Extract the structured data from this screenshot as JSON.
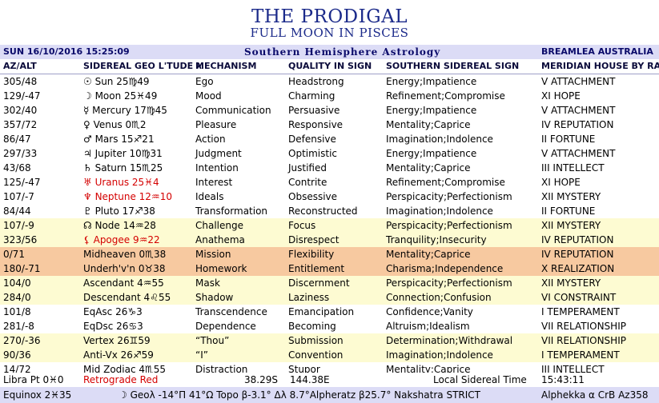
{
  "title": "THE PRODIGAL",
  "subtitle": "FULL MOON IN PISCES",
  "header": {
    "datetime": "SUN 16/10/2016  15:25:09",
    "system": "Southern Hemisphere Astrology",
    "location": "BREAMLEA AUSTRALIA"
  },
  "columns": [
    "AZ/ALT",
    "SIDEREAL GEO L'TUDE λ",
    "MECHANISM",
    "QUALITY IN SIGN",
    "SOUTHERN SIDEREAL SIGN",
    "MERIDIAN HOUSE BY RA"
  ],
  "rows": [
    {
      "az": "305/48",
      "body": "☉ Sun 25♍49",
      "mech": "Ego",
      "qual": "Headstrong",
      "sign": "Energy;Impatience",
      "house": "V ATTACHMENT",
      "bg": "w",
      "red": false
    },
    {
      "az": "129/-47",
      "body": "☽ Moon 25♓49",
      "mech": "Mood",
      "qual": "Charming",
      "sign": "Refinement;Compromise",
      "house": "XI HOPE",
      "bg": "w",
      "red": false
    },
    {
      "az": "302/40",
      "body": "☿ Mercury 17♍45",
      "mech": "Communication",
      "qual": "Persuasive",
      "sign": "Energy;Impatience",
      "house": "V ATTACHMENT",
      "bg": "w",
      "red": false
    },
    {
      "az": "357/72",
      "body": "♀ Venus 0♏2",
      "mech": "Pleasure",
      "qual": "Responsive",
      "sign": "Mentality;Caprice",
      "house": "IV REPUTATION",
      "bg": "w",
      "red": false
    },
    {
      "az": "86/47",
      "body": "♂ Mars 15♐21",
      "mech": "Action",
      "qual": "Defensive",
      "sign": "Imagination;Indolence",
      "house": "II FORTUNE",
      "bg": "w",
      "red": false
    },
    {
      "az": "297/33",
      "body": "♃ Jupiter 10♍31",
      "mech": "Judgment",
      "qual": "Optimistic",
      "sign": "Energy;Impatience",
      "house": "V ATTACHMENT",
      "bg": "w",
      "red": false
    },
    {
      "az": "43/68",
      "body": "♄ Saturn 15♏25",
      "mech": "Intention",
      "qual": "Justified",
      "sign": "Mentality;Caprice",
      "house": "III INTELLECT",
      "bg": "w",
      "red": false
    },
    {
      "az": "125/-47",
      "body": "♅ Uranus 25♓4",
      "mech": "Interest",
      "qual": "Contrite",
      "sign": "Refinement;Compromise",
      "house": "XI HOPE",
      "bg": "w",
      "red": true
    },
    {
      "az": "107/-7",
      "body": "♆ Neptune 12♒10",
      "mech": "Ideals",
      "qual": "Obsessive",
      "sign": "Perspicacity;Perfectionism",
      "house": "XII MYSTERY",
      "bg": "w",
      "red": true
    },
    {
      "az": "84/44",
      "body": "♇ Pluto 17♐38",
      "mech": "Transformation",
      "qual": "Reconstructed",
      "sign": "Imagination;Indolence",
      "house": "II FORTUNE",
      "bg": "w",
      "red": false
    },
    {
      "az": "107/-9",
      "body": "☊ Node 14♒28",
      "mech": "Challenge",
      "qual": "Focus",
      "sign": "Perspicacity;Perfectionism",
      "house": "XII MYSTERY",
      "bg": "y",
      "red": false
    },
    {
      "az": "323/56",
      "body": "⚸ Apogee 9♒22",
      "mech": "Anathema",
      "qual": "Disrespect",
      "sign": "Tranquility;Insecurity",
      "house": "IV REPUTATION",
      "bg": "y",
      "red": true
    },
    {
      "az": "0/71",
      "body": "Midheaven 0♏38",
      "mech": "Mission",
      "qual": "Flexibility",
      "sign": "Mentality;Caprice",
      "house": "IV REPUTATION",
      "bg": "o",
      "red": false
    },
    {
      "az": "180/-71",
      "body": "Underh'v'n 0♉38",
      "mech": "Homework",
      "qual": "Entitlement",
      "sign": "Charisma;Independence",
      "house": "X REALIZATION",
      "bg": "o",
      "red": false
    },
    {
      "az": "104/0",
      "body": "Ascendant 4♒55",
      "mech": "Mask",
      "qual": "Discernment",
      "sign": "Perspicacity;Perfectionism",
      "house": "XII MYSTERY",
      "bg": "y",
      "red": false
    },
    {
      "az": "284/0",
      "body": "Descendant 4♌55",
      "mech": "Shadow",
      "qual": "Laziness",
      "sign": "Connection;Confusion",
      "house": "VI CONSTRAINT",
      "bg": "y",
      "red": false
    },
    {
      "az": "101/8",
      "body": "EqAsc 26♑3",
      "mech": "Transcendence",
      "qual": "Emancipation",
      "sign": "Confidence;Vanity",
      "house": "I TEMPERAMENT",
      "bg": "w",
      "red": false
    },
    {
      "az": "281/-8",
      "body": "EqDsc 26♋3",
      "mech": "Dependence",
      "qual": "Becoming",
      "sign": "Altruism;Idealism",
      "house": "VII RELATIONSHIP",
      "bg": "w",
      "red": false
    },
    {
      "az": "270/-36",
      "body": "Vertex 26♊59",
      "mech": "“Thou”",
      "qual": "Submission",
      "sign": "Determination;Withdrawal",
      "house": "VII RELATIONSHIP",
      "bg": "y",
      "red": false
    },
    {
      "az": "90/36",
      "body": "Anti-Vx 26♐59",
      "mech": "“I”",
      "qual": "Convention",
      "sign": "Imagination;Indolence",
      "house": "I TEMPERAMENT",
      "bg": "y",
      "red": false
    },
    {
      "az": "14/72",
      "body": "Mid Zodiac 4♏55",
      "mech": "Distraction",
      "qual": "Stupor",
      "sign": "Mentality;Caprice",
      "house": "III INTELLECT",
      "bg": "w",
      "red": false
    }
  ],
  "footer": {
    "libra": "Libra Pt 0♓0",
    "retro": "Retrograde Red",
    "lat": "38.29S",
    "lon": "144.38E",
    "lst_label": "Local Sidereal Time",
    "lst": "15:43:11",
    "equinox": "Equinox 2♓35",
    "line": "☽ Geoλ -14°Π 41°Ω Topo β-3.1° Δλ 8.7°Alpheratz β25.7° Nakshatra STRICT",
    "star": "Alphekka α CrB Az358"
  },
  "colors": {
    "yellow": "#fdfbd2",
    "orange": "#f7c9a0",
    "header": "#dcdcf6",
    "title": "#1b2a8a",
    "retro": "#d40000"
  }
}
